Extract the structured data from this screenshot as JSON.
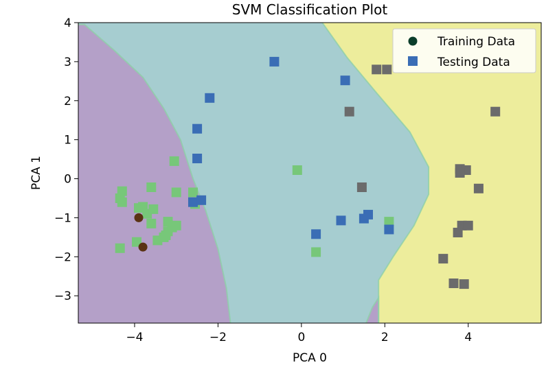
{
  "chart_data": {
    "type": "scatter",
    "title": "SVM Classification Plot",
    "xlabel": "PCA 0",
    "ylabel": "PCA 1",
    "xlim": [
      -5.35,
      5.75
    ],
    "ylim": [
      -3.7,
      4.0
    ],
    "x_ticks": [
      -4,
      -2,
      0,
      2,
      4
    ],
    "x_tick_labels": [
      "−4",
      "−2",
      "0",
      "2",
      "4"
    ],
    "y_ticks": [
      -3,
      -2,
      -1,
      0,
      1,
      2,
      3,
      4
    ],
    "y_tick_labels": [
      "−3",
      "−2",
      "−1",
      "0",
      "1",
      "2",
      "3",
      "4"
    ],
    "grid": false,
    "legend_position": "top-right",
    "legend": [
      {
        "label": "Training Data",
        "marker": "circle",
        "color": "#0b3d2a"
      },
      {
        "label": "Testing Data",
        "marker": "square",
        "color": "#3a6db5"
      }
    ],
    "regions": [
      {
        "class": 0,
        "color": "#b4a0c8"
      },
      {
        "class": 1,
        "color": "#a6cdd0"
      },
      {
        "class": 2,
        "color": "#eded9c"
      }
    ],
    "point_colors": {
      "class_0": "#77c779",
      "class_1": "#3a6db5",
      "class_2": "#6b6b6b"
    },
    "training_points": [
      {
        "x": -3.8,
        "y": -1.75,
        "color": "#5a3213"
      },
      {
        "x": -3.9,
        "y": -1.0,
        "color": "#5a3213"
      }
    ],
    "testing_series": [
      {
        "class": 0,
        "points": [
          [
            -4.35,
            -1.78
          ],
          [
            -3.95,
            -1.62
          ],
          [
            -3.8,
            -0.72
          ],
          [
            -3.9,
            -0.75
          ],
          [
            -3.7,
            -0.9
          ],
          [
            -3.6,
            -1.15
          ],
          [
            -3.55,
            -0.78
          ],
          [
            -3.6,
            -0.22
          ],
          [
            -4.3,
            -0.32
          ],
          [
            -4.35,
            -0.5
          ],
          [
            -4.3,
            -0.6
          ],
          [
            -3.45,
            -1.58
          ],
          [
            -3.3,
            -1.5
          ],
          [
            -3.2,
            -1.35
          ],
          [
            -3.1,
            -1.25
          ],
          [
            -3.2,
            -1.1
          ],
          [
            -3.0,
            -1.2
          ],
          [
            -3.25,
            -1.45
          ],
          [
            -3.0,
            -0.35
          ],
          [
            -3.05,
            0.45
          ],
          [
            -2.6,
            -0.35
          ],
          [
            -2.55,
            -0.65
          ],
          [
            -0.1,
            0.22
          ],
          [
            0.35,
            -1.88
          ],
          [
            2.1,
            -1.1
          ]
        ]
      },
      {
        "class": 1,
        "points": [
          [
            -0.65,
            3.0
          ],
          [
            -2.2,
            2.07
          ],
          [
            -2.5,
            1.28
          ],
          [
            -2.5,
            0.52
          ],
          [
            -2.6,
            -0.6
          ],
          [
            -2.4,
            -0.55
          ],
          [
            1.05,
            2.52
          ],
          [
            0.35,
            -1.42
          ],
          [
            0.95,
            -1.07
          ],
          [
            1.5,
            -1.02
          ],
          [
            1.6,
            -0.92
          ],
          [
            2.1,
            -1.3
          ]
        ]
      },
      {
        "class": 2,
        "points": [
          [
            1.8,
            2.8
          ],
          [
            2.05,
            2.8
          ],
          [
            1.15,
            1.72
          ],
          [
            1.45,
            -0.22
          ],
          [
            4.65,
            1.72
          ],
          [
            3.8,
            0.25
          ],
          [
            3.95,
            0.22
          ],
          [
            3.8,
            0.15
          ],
          [
            4.25,
            -0.25
          ],
          [
            3.85,
            -1.2
          ],
          [
            4.0,
            -1.2
          ],
          [
            3.75,
            -1.38
          ],
          [
            3.4,
            -2.05
          ],
          [
            3.65,
            -2.68
          ],
          [
            3.9,
            -2.7
          ]
        ]
      }
    ],
    "decision_boundaries": [
      {
        "between": "class_0-class_1",
        "path": [
          [
            -5.35,
            3.95
          ],
          [
            -5.2,
            3.95
          ],
          [
            -4.5,
            3.3
          ],
          [
            -3.8,
            2.6
          ],
          [
            -3.3,
            1.8
          ],
          [
            -2.9,
            1.0
          ],
          [
            -2.6,
            0.0
          ],
          [
            -2.3,
            -0.8
          ],
          [
            -2.0,
            -1.8
          ],
          [
            -1.8,
            -2.8
          ],
          [
            -1.7,
            -3.7
          ]
        ]
      },
      {
        "between": "class_1-class_2",
        "path": [
          [
            0.5,
            4.0
          ],
          [
            1.1,
            3.1
          ],
          [
            1.8,
            2.2
          ],
          [
            2.6,
            1.2
          ],
          [
            3.05,
            0.3
          ],
          [
            3.05,
            -0.4
          ],
          [
            2.7,
            -1.2
          ],
          [
            2.2,
            -2.0
          ],
          [
            1.85,
            -2.6
          ],
          [
            1.85,
            -3.7
          ]
        ]
      },
      {
        "between": "class_0-lower",
        "path": [
          [
            1.85,
            -3.7
          ],
          [
            1.85,
            -3.05
          ],
          [
            1.7,
            -3.3
          ],
          [
            1.55,
            -3.7
          ]
        ]
      }
    ]
  }
}
